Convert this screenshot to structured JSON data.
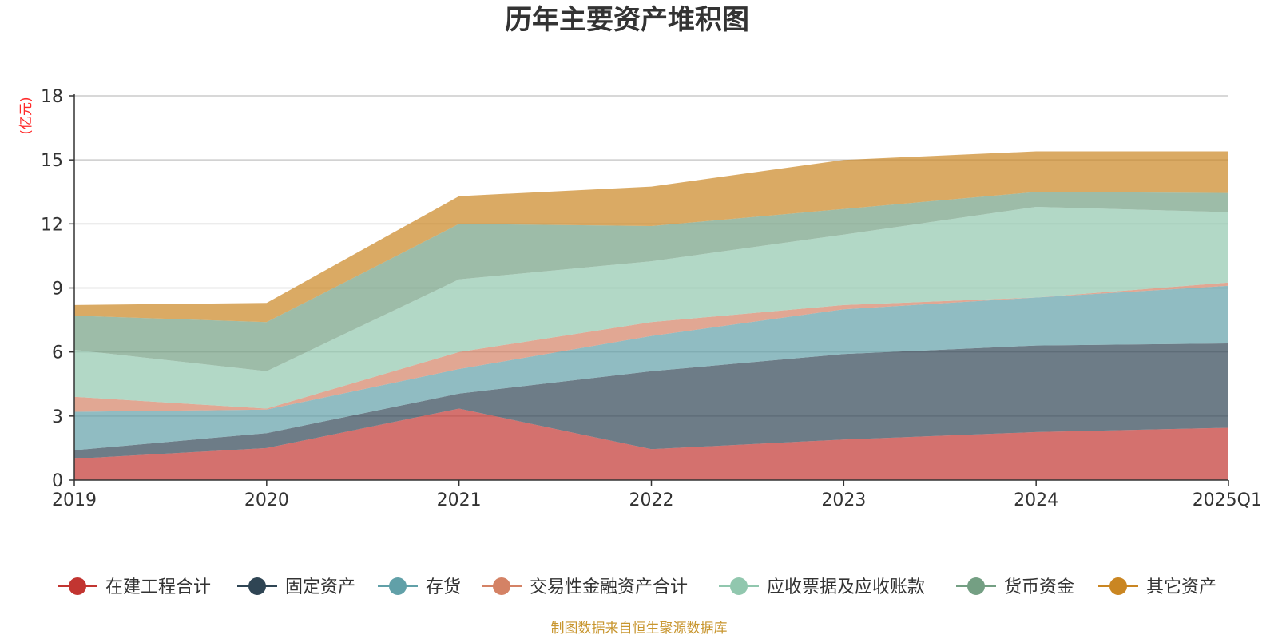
{
  "chart_data": {
    "type": "area",
    "stacked": true,
    "title": "历年主要资产堆积图",
    "unit_label": "(亿元)",
    "x": [
      "2019",
      "2020",
      "2021",
      "2022",
      "2023",
      "2024",
      "2025Q1"
    ],
    "ylim": [
      0,
      18
    ],
    "yticks": [
      0,
      3,
      6,
      9,
      12,
      15,
      18
    ],
    "grid": true,
    "legend_position": "bottom",
    "series": [
      {
        "name": "在建工程合计",
        "color": "#c23531",
        "values": [
          1.0,
          1.5,
          3.35,
          1.45,
          1.9,
          2.25,
          2.45
        ]
      },
      {
        "name": "固定资产",
        "color": "#2f4554",
        "values": [
          0.4,
          0.7,
          0.7,
          3.65,
          4.0,
          4.05,
          3.95
        ]
      },
      {
        "name": "存货",
        "color": "#61a0a8",
        "values": [
          1.8,
          1.1,
          1.15,
          1.65,
          2.1,
          2.25,
          2.7
        ]
      },
      {
        "name": "交易性金融资产合计",
        "color": "#d48265",
        "values": [
          0.7,
          0.05,
          0.8,
          0.65,
          0.2,
          0.0,
          0.15
        ]
      },
      {
        "name": "应收票据及应收账款",
        "color": "#91c7ae",
        "values": [
          2.2,
          1.75,
          3.4,
          2.85,
          3.3,
          4.25,
          3.3
        ]
      },
      {
        "name": "货币资金",
        "color": "#749f83",
        "values": [
          1.6,
          2.3,
          2.6,
          1.65,
          1.2,
          0.7,
          0.9
        ]
      },
      {
        "name": "其它资产",
        "color": "#ca8622",
        "values": [
          0.5,
          0.9,
          1.3,
          1.85,
          2.3,
          1.9,
          1.95
        ]
      }
    ]
  },
  "source_note": "制图数据来自恒生聚源数据库"
}
